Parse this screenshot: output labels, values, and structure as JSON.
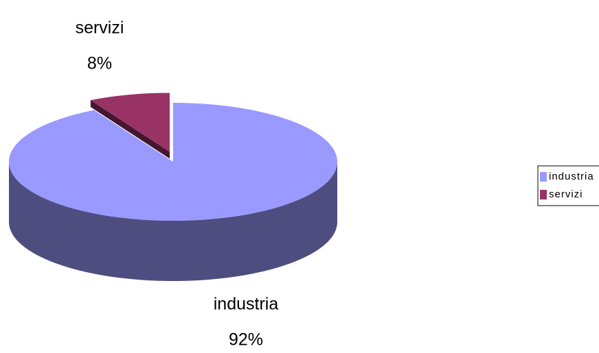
{
  "chart_data": {
    "type": "pie",
    "categories": [
      "industria",
      "servizi"
    ],
    "values": [
      92,
      8
    ],
    "value_labels": [
      "92%",
      "8%"
    ],
    "colors": [
      "#9999ff",
      "#993366"
    ],
    "legend": "right"
  }
}
